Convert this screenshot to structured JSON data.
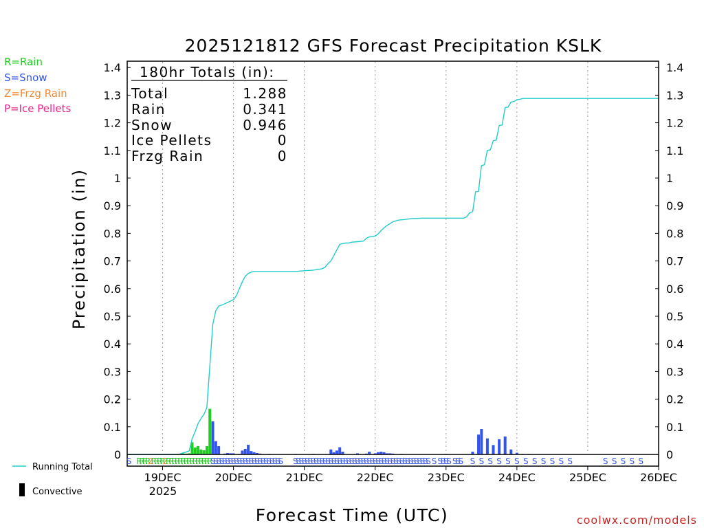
{
  "chart_data": {
    "type": "bar",
    "title": "2025121812 GFS Forecast Precipitation KSLK",
    "xlabel": "Forecast Time (UTC)",
    "ylabel": "Precipitation (in)",
    "ylim": [
      0,
      1.42
    ],
    "yticks": [
      "0",
      "0.1",
      "0.2",
      "0.3",
      "0.4",
      "0.5",
      "0.6",
      "0.7",
      "0.8",
      "0.9",
      "1",
      "1.1",
      "1.2",
      "1.3",
      "1.4"
    ],
    "yticks_values": [
      0,
      0.1,
      0.2,
      0.3,
      0.4,
      0.5,
      0.6,
      0.7,
      0.8,
      0.9,
      1,
      1.1,
      1.2,
      1.3,
      1.4
    ],
    "xlim_hours": [
      0,
      180
    ],
    "xticks": [
      {
        "hour": 12,
        "label": "19DEC"
      },
      {
        "hour": 36,
        "label": "20DEC"
      },
      {
        "hour": 60,
        "label": "21DEC"
      },
      {
        "hour": 84,
        "label": "22DEC"
      },
      {
        "hour": 108,
        "label": "23DEC"
      },
      {
        "hour": 132,
        "label": "24DEC"
      },
      {
        "hour": 156,
        "label": "25DEC"
      },
      {
        "hour": 180,
        "label": "26DEC"
      }
    ],
    "year_label": "2025",
    "grid": "vertical dotted at day boundaries",
    "legend": {
      "precip_types": [
        {
          "label": "R=Rain",
          "color": "#22cc22"
        },
        {
          "label": "S=Snow",
          "color": "#3355ee"
        },
        {
          "label": "Z=Frzg Rain",
          "color": "#ee8833"
        },
        {
          "label": "P=Ice Pellets",
          "color": "#ee2288"
        }
      ],
      "running_total_label": "Running Total",
      "convective_label": "Convective"
    },
    "totals_box": {
      "header": "180hr Totals (in):",
      "rows": [
        {
          "label": "Total",
          "value": "1.288"
        },
        {
          "label": "Rain",
          "value": "0.341"
        },
        {
          "label": "Snow",
          "value": "0.946"
        },
        {
          "label": "Ice Pellets",
          "value": "0"
        },
        {
          "label": "Frzg Rain",
          "value": "0"
        }
      ]
    },
    "bar_series": {
      "name": "Precipitation per step",
      "hours": [
        18,
        19,
        20,
        21,
        22,
        23,
        24,
        25,
        26,
        27,
        28,
        29,
        30,
        31,
        33,
        34,
        35,
        36,
        38,
        39,
        40,
        41,
        42,
        43,
        44,
        45,
        48,
        57,
        63,
        69,
        70,
        71,
        72,
        73,
        78,
        81,
        82,
        84,
        85,
        86,
        87,
        88,
        89,
        90,
        93,
        108,
        117,
        119,
        120,
        122,
        124,
        126,
        128,
        130,
        132,
        134,
        136
      ],
      "values": [
        0.002,
        0.004,
        0.003,
        0.004,
        0.044,
        0.025,
        0.03,
        0.018,
        0.015,
        0.03,
        0.165,
        0.12,
        0.048,
        0.03,
        0.003,
        0.005,
        0.004,
        0.004,
        0.002,
        0.014,
        0.02,
        0.035,
        0.012,
        0.008,
        0.005,
        0.003,
        0.002,
        0.002,
        0.002,
        0.018,
        0.008,
        0.014,
        0.026,
        0.01,
        0.004,
        0.003,
        0.01,
        0.004,
        0.008,
        0.01,
        0.008,
        0.004,
        0.004,
        0.003,
        0.002,
        0.002,
        0.01,
        0.072,
        0.092,
        0.058,
        0.034,
        0.055,
        0.065,
        0.018,
        0.006,
        0.002,
        0.002
      ],
      "types": [
        "R",
        "R",
        "R",
        "R",
        "R",
        "R",
        "R",
        "R",
        "R",
        "R",
        "R",
        "S",
        "S",
        "S",
        "S",
        "S",
        "S",
        "S",
        "S",
        "S",
        "S",
        "S",
        "S",
        "S",
        "S",
        "S",
        "S",
        "S",
        "S",
        "S",
        "S",
        "S",
        "S",
        "S",
        "S",
        "S",
        "S",
        "S",
        "S",
        "S",
        "S",
        "S",
        "S",
        "S",
        "S",
        "S",
        "S",
        "S",
        "S",
        "S",
        "S",
        "S",
        "S",
        "S",
        "S",
        "S",
        "S"
      ]
    },
    "running_total": {
      "name": "Running Total",
      "color": "#22cccc",
      "hours": [
        0,
        17,
        18,
        19,
        20,
        21,
        22,
        23,
        24,
        25,
        26,
        27,
        28,
        29,
        30,
        31,
        32,
        33,
        34,
        35,
        36,
        37,
        38,
        39,
        40,
        41,
        42,
        43,
        44,
        45,
        46,
        48,
        54,
        57,
        60,
        63,
        66,
        67,
        68,
        69,
        70,
        71,
        72,
        73,
        74,
        75,
        76,
        78,
        80,
        81,
        82,
        84,
        85,
        86,
        87,
        88,
        89,
        90,
        92,
        94,
        96,
        100,
        108,
        114,
        115,
        116,
        117,
        118,
        119,
        120,
        121,
        122,
        123,
        124,
        125,
        126,
        127,
        128,
        129,
        130,
        131,
        132,
        133,
        134,
        136,
        138,
        180
      ],
      "values": [
        0,
        0,
        0.002,
        0.006,
        0.009,
        0.013,
        0.057,
        0.082,
        0.112,
        0.13,
        0.145,
        0.17,
        0.32,
        0.47,
        0.52,
        0.537,
        0.54,
        0.545,
        0.55,
        0.555,
        0.56,
        0.575,
        0.6,
        0.625,
        0.645,
        0.655,
        0.66,
        0.662,
        0.662,
        0.662,
        0.662,
        0.662,
        0.662,
        0.662,
        0.665,
        0.667,
        0.672,
        0.677,
        0.69,
        0.7,
        0.72,
        0.74,
        0.76,
        0.763,
        0.765,
        0.765,
        0.768,
        0.77,
        0.772,
        0.782,
        0.787,
        0.79,
        0.798,
        0.81,
        0.82,
        0.828,
        0.835,
        0.842,
        0.848,
        0.85,
        0.853,
        0.855,
        0.855,
        0.855,
        0.86,
        0.875,
        0.878,
        0.95,
        0.952,
        1.045,
        1.048,
        1.1,
        1.102,
        1.135,
        1.137,
        1.19,
        1.192,
        1.255,
        1.257,
        1.275,
        1.277,
        1.283,
        1.285,
        1.288,
        1.288,
        1.288,
        1.288
      ]
    },
    "type_markers": [
      {
        "hour": 0.6,
        "t": "S"
      },
      {
        "hour": 4,
        "t": "R"
      },
      {
        "hour": 5,
        "t": "R"
      },
      {
        "hour": 6,
        "t": "R"
      },
      {
        "hour": 7,
        "t": "R"
      },
      {
        "hour": 8,
        "t": "Z"
      },
      {
        "hour": 9,
        "t": "R"
      },
      {
        "hour": 10,
        "t": "R"
      },
      {
        "hour": 11,
        "t": "R"
      },
      {
        "hour": 12,
        "t": "R"
      },
      {
        "hour": 13,
        "t": "Z"
      },
      {
        "hour": 14,
        "t": "R"
      },
      {
        "hour": 15,
        "t": "R"
      },
      {
        "hour": 16,
        "t": "R"
      },
      {
        "hour": 17,
        "t": "R"
      },
      {
        "hour": 18,
        "t": "R"
      },
      {
        "hour": 19,
        "t": "R"
      },
      {
        "hour": 20,
        "t": "R"
      },
      {
        "hour": 21,
        "t": "R"
      },
      {
        "hour": 22,
        "t": "R"
      },
      {
        "hour": 23,
        "t": "R"
      },
      {
        "hour": 24,
        "t": "R"
      },
      {
        "hour": 25,
        "t": "R"
      },
      {
        "hour": 26,
        "t": "R"
      },
      {
        "hour": 27,
        "t": "R"
      },
      {
        "hour": 28,
        "t": "R"
      },
      {
        "hour": 29,
        "t": "S"
      },
      {
        "hour": 30,
        "t": "S"
      },
      {
        "hour": 31,
        "t": "S"
      },
      {
        "hour": 32,
        "t": "S"
      },
      {
        "hour": 33,
        "t": "S"
      },
      {
        "hour": 34,
        "t": "S"
      },
      {
        "hour": 35,
        "t": "S"
      },
      {
        "hour": 36,
        "t": "S"
      },
      {
        "hour": 37,
        "t": "S"
      },
      {
        "hour": 38,
        "t": "S"
      },
      {
        "hour": 39,
        "t": "S"
      },
      {
        "hour": 40,
        "t": "S"
      },
      {
        "hour": 41,
        "t": "S"
      },
      {
        "hour": 42,
        "t": "S"
      },
      {
        "hour": 43,
        "t": "S"
      },
      {
        "hour": 44,
        "t": "S"
      },
      {
        "hour": 45,
        "t": "S"
      },
      {
        "hour": 46,
        "t": "S"
      },
      {
        "hour": 47,
        "t": "S"
      },
      {
        "hour": 48,
        "t": "S"
      },
      {
        "hour": 49,
        "t": "S"
      },
      {
        "hour": 50,
        "t": "S"
      },
      {
        "hour": 51,
        "t": "S"
      },
      {
        "hour": 52,
        "t": "S"
      },
      {
        "hour": 57,
        "t": "S"
      },
      {
        "hour": 58,
        "t": "S"
      },
      {
        "hour": 59,
        "t": "S"
      },
      {
        "hour": 60,
        "t": "S"
      },
      {
        "hour": 61,
        "t": "S"
      },
      {
        "hour": 62,
        "t": "S"
      },
      {
        "hour": 63,
        "t": "S"
      },
      {
        "hour": 64,
        "t": "S"
      },
      {
        "hour": 65,
        "t": "S"
      },
      {
        "hour": 66,
        "t": "S"
      },
      {
        "hour": 67,
        "t": "S"
      },
      {
        "hour": 68,
        "t": "S"
      },
      {
        "hour": 69,
        "t": "S"
      },
      {
        "hour": 70,
        "t": "S"
      },
      {
        "hour": 71,
        "t": "S"
      },
      {
        "hour": 72,
        "t": "S"
      },
      {
        "hour": 73,
        "t": "S"
      },
      {
        "hour": 74,
        "t": "S"
      },
      {
        "hour": 75,
        "t": "S"
      },
      {
        "hour": 76,
        "t": "S"
      },
      {
        "hour": 77,
        "t": "S"
      },
      {
        "hour": 78,
        "t": "S"
      },
      {
        "hour": 79,
        "t": "S"
      },
      {
        "hour": 80,
        "t": "S"
      },
      {
        "hour": 81,
        "t": "S"
      },
      {
        "hour": 82,
        "t": "S"
      },
      {
        "hour": 83,
        "t": "S"
      },
      {
        "hour": 84,
        "t": "S"
      },
      {
        "hour": 85,
        "t": "S"
      },
      {
        "hour": 86,
        "t": "S"
      },
      {
        "hour": 87,
        "t": "S"
      },
      {
        "hour": 88,
        "t": "S"
      },
      {
        "hour": 89,
        "t": "S"
      },
      {
        "hour": 90,
        "t": "S"
      },
      {
        "hour": 91,
        "t": "S"
      },
      {
        "hour": 92,
        "t": "S"
      },
      {
        "hour": 93,
        "t": "S"
      },
      {
        "hour": 94,
        "t": "S"
      },
      {
        "hour": 95,
        "t": "S"
      },
      {
        "hour": 96,
        "t": "S"
      },
      {
        "hour": 97,
        "t": "S"
      },
      {
        "hour": 98,
        "t": "S"
      },
      {
        "hour": 99,
        "t": "S"
      },
      {
        "hour": 100,
        "t": "S"
      },
      {
        "hour": 101,
        "t": "S"
      },
      {
        "hour": 102,
        "t": "S"
      },
      {
        "hour": 104,
        "t": "S"
      },
      {
        "hour": 106,
        "t": "S"
      },
      {
        "hour": 107,
        "t": "S"
      },
      {
        "hour": 108,
        "t": "S"
      },
      {
        "hour": 109,
        "t": "S"
      },
      {
        "hour": 111,
        "t": "S"
      },
      {
        "hour": 112,
        "t": "S"
      },
      {
        "hour": 113,
        "t": "S"
      },
      {
        "hour": 117,
        "t": "S"
      },
      {
        "hour": 120,
        "t": "S"
      },
      {
        "hour": 123,
        "t": "S"
      },
      {
        "hour": 126,
        "t": "S"
      },
      {
        "hour": 129,
        "t": "S"
      },
      {
        "hour": 132,
        "t": "S"
      },
      {
        "hour": 135,
        "t": "S"
      },
      {
        "hour": 138,
        "t": "S"
      },
      {
        "hour": 141,
        "t": "S"
      },
      {
        "hour": 144,
        "t": "S"
      },
      {
        "hour": 147,
        "t": "S"
      },
      {
        "hour": 150,
        "t": "S"
      },
      {
        "hour": 162,
        "t": "S"
      },
      {
        "hour": 165,
        "t": "S"
      },
      {
        "hour": 168,
        "t": "S"
      },
      {
        "hour": 171,
        "t": "S"
      },
      {
        "hour": 174,
        "t": "S"
      }
    ],
    "watermark": "coolwx.com/models"
  },
  "colors": {
    "rain": "#22cc22",
    "snow": "#3355ee",
    "frzg_rain": "#ee8833",
    "ice_pellets": "#ee2288",
    "running_total": "#22cccc",
    "watermark": "#cc2222"
  }
}
